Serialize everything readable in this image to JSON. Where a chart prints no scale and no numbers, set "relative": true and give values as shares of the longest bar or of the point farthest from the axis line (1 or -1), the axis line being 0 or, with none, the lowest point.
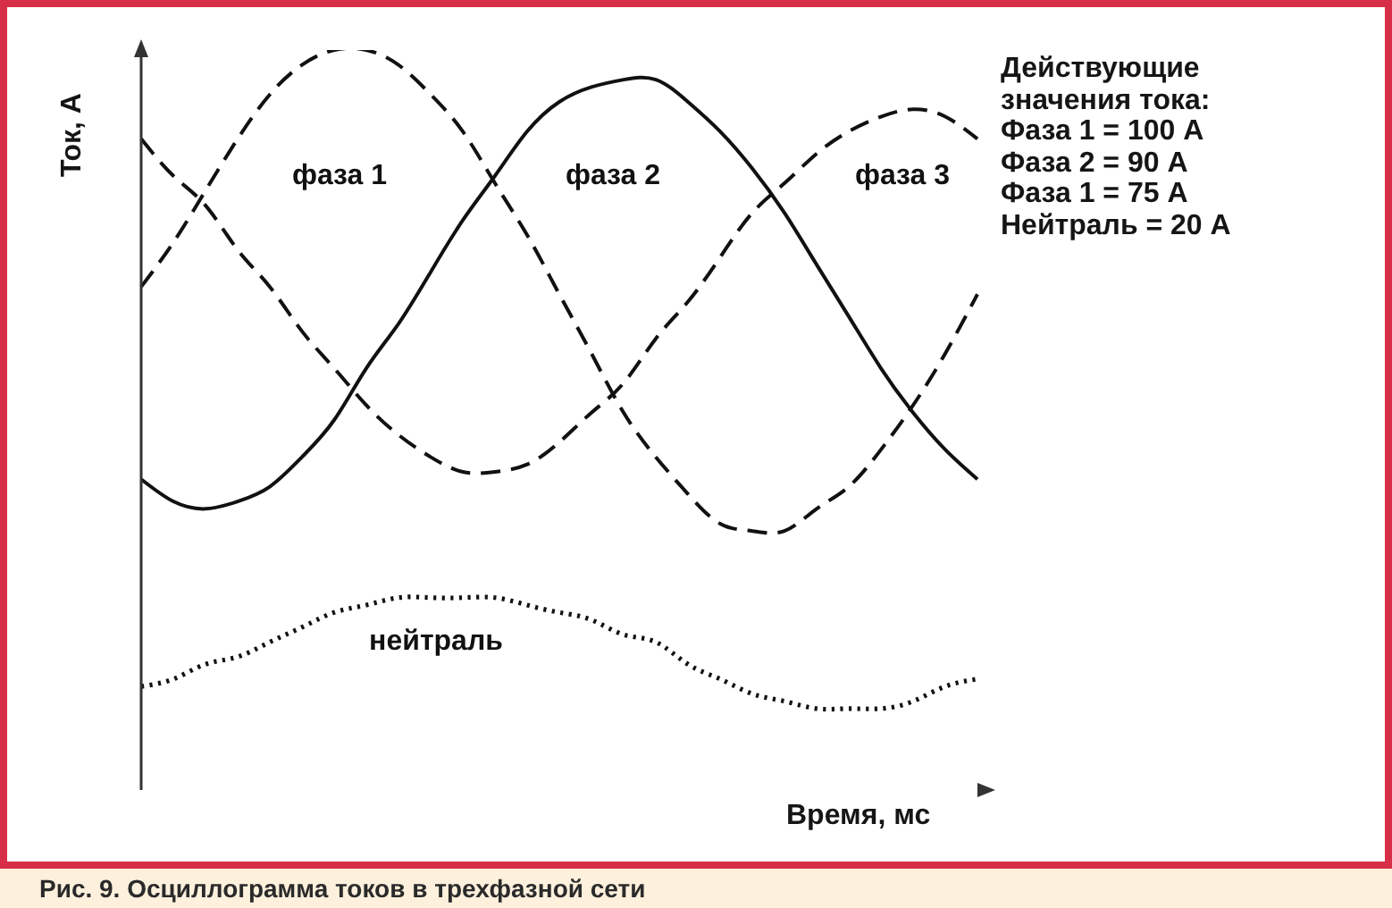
{
  "chart_data": {
    "type": "line",
    "title": "Рис. 9. Осциллограмма токов в трехфазной сети",
    "xlabel": "Время, мс",
    "ylabel": "Ток, А",
    "annotations": [
      "Действующие значения тока:",
      "Фаза 1 = 100 А",
      "Фаза 2 = 90 А",
      "Фаза 1 = 75 А",
      "Нейтраль = 20 А"
    ],
    "relative": true,
    "categories": [
      null,
      null,
      null,
      null,
      null,
      null,
      null,
      null,
      null,
      null,
      null,
      null,
      null,
      null,
      null,
      null,
      null,
      null,
      null,
      null,
      null,
      null,
      null,
      null,
      null,
      null,
      null
    ],
    "series": [
      {
        "name": "фаза 1",
        "color": "#111111",
        "line_style": "dashed",
        "values": [
          0.68,
          0.74,
          0.81,
          0.88,
          0.94,
          0.98,
          1.0,
          1.0,
          0.98,
          0.94,
          0.89,
          0.82,
          0.75,
          0.67,
          0.59,
          0.51,
          0.45,
          0.4,
          0.36,
          0.35,
          0.35,
          0.38,
          0.41,
          0.46,
          0.52,
          0.59,
          0.67
        ]
      },
      {
        "name": "фаза 2",
        "color": "#111111",
        "line_style": "solid",
        "values": [
          0.42,
          0.39,
          0.38,
          0.39,
          0.41,
          0.45,
          0.5,
          0.57,
          0.63,
          0.7,
          0.77,
          0.83,
          0.89,
          0.93,
          0.95,
          0.96,
          0.96,
          0.93,
          0.89,
          0.84,
          0.78,
          0.71,
          0.64,
          0.57,
          0.51,
          0.46,
          0.42
        ]
      },
      {
        "name": "фаза 3",
        "color": "#111111",
        "line_style": "dashed",
        "values": [
          0.88,
          0.83,
          0.79,
          0.73,
          0.68,
          0.62,
          0.57,
          0.52,
          0.48,
          0.45,
          0.43,
          0.43,
          0.44,
          0.47,
          0.51,
          0.55,
          0.61,
          0.66,
          0.72,
          0.78,
          0.82,
          0.86,
          0.89,
          0.91,
          0.92,
          0.91,
          0.88
        ]
      },
      {
        "name": "нейтраль",
        "color": "#111111",
        "line_style": "dotted",
        "values": [
          0.14,
          0.15,
          0.17,
          0.18,
          0.2,
          0.22,
          0.24,
          0.25,
          0.26,
          0.26,
          0.26,
          0.26,
          0.25,
          0.24,
          0.23,
          0.21,
          0.2,
          0.17,
          0.15,
          0.13,
          0.12,
          0.11,
          0.11,
          0.11,
          0.12,
          0.14,
          0.15
        ]
      }
    ]
  }
}
